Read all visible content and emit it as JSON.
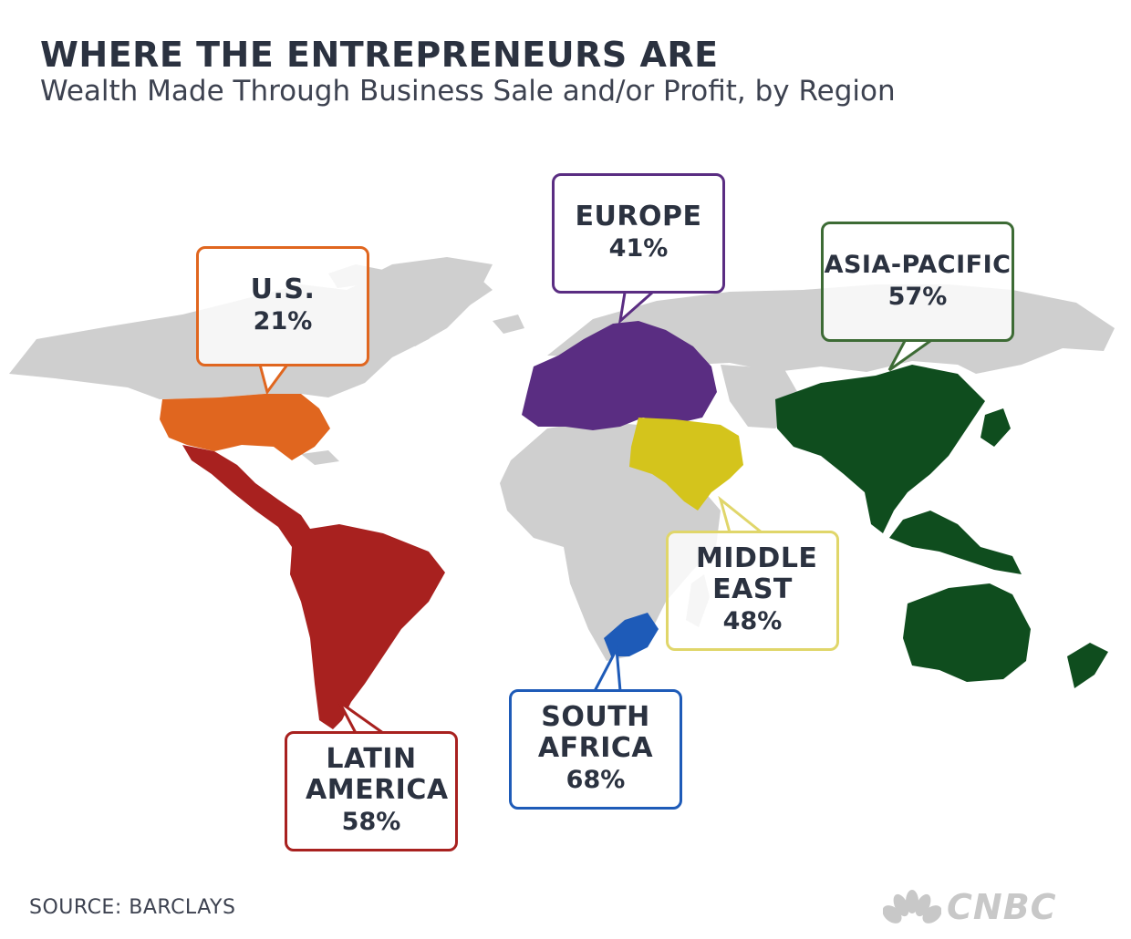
{
  "header": {
    "title": "WHERE THE ENTREPRENEURS ARE",
    "subtitle": "Wealth Made Through Business Sale and/or Profit, by Region"
  },
  "regions": [
    {
      "id": "us",
      "name": "U.S.",
      "value": "21%",
      "color": "#e0661f"
    },
    {
      "id": "europe",
      "name": "EUROPE",
      "value": "41%",
      "color": "#5a2d82"
    },
    {
      "id": "asia-pacific",
      "name": "ASIA-PACIFIC",
      "value": "57%",
      "color": "#0f4d1e"
    },
    {
      "id": "middle-east",
      "name": "MIDDLE EAST",
      "value": "48%",
      "color": "#d4c41c"
    },
    {
      "id": "south-africa",
      "name": "SOUTH AFRICA",
      "value": "68%",
      "color": "#1e5bb8"
    },
    {
      "id": "latin-america",
      "name": "LATIN AMERICA",
      "value": "58%",
      "color": "#a8211f"
    }
  ],
  "map": {
    "land_color": "#cfcfcf"
  },
  "footer": {
    "source": "SOURCE: BARCLAYS",
    "logo": "CNBC"
  }
}
